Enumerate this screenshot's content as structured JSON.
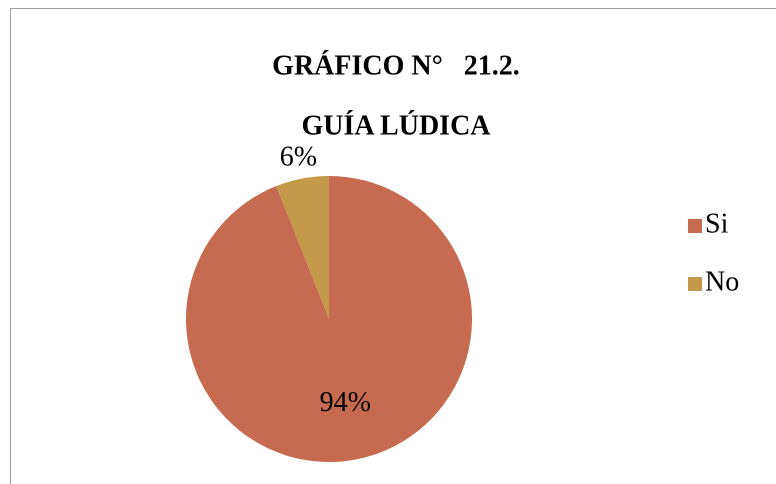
{
  "chart_data": {
    "type": "pie",
    "title": "GRÁFICO N°   21.2.",
    "subtitle": "GUÍA LÚDICA",
    "categories": [
      "Si",
      "No"
    ],
    "values": [
      94,
      6
    ],
    "value_labels": [
      "94%",
      "6%"
    ],
    "colors": [
      "#c66a50",
      "#c49a4a"
    ],
    "legend": "right"
  }
}
